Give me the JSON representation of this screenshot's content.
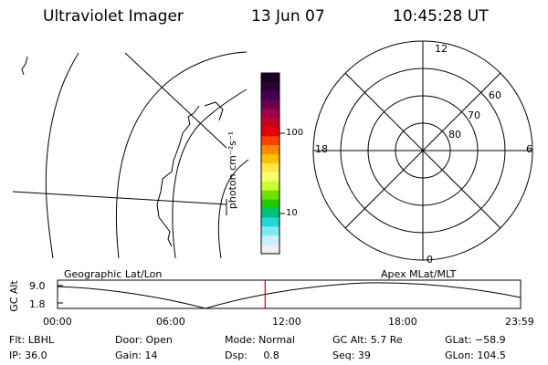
{
  "header": {
    "instrument": "Ultraviolet Imager",
    "date": "13 Jun 07",
    "time": "10:45:28 UT"
  },
  "colorbar": {
    "unit_label": "photon cm⁻²s⁻¹",
    "ticks": [
      "100",
      "10"
    ],
    "colors_top_to_bottom": [
      "#1a0022",
      "#2a0035",
      "#46004d",
      "#6a0050",
      "#a0004a",
      "#c80020",
      "#e60010",
      "#ff4000",
      "#ff8a00",
      "#ffc000",
      "#ffe84a",
      "#f4ff6a",
      "#c8ff30",
      "#70e000",
      "#20c800",
      "#00c080",
      "#20d8d0",
      "#80e8f0",
      "#c8f0f8",
      "#f0f0f0"
    ]
  },
  "polar_plot": {
    "mlt_labels": {
      "top": "12",
      "left": "18",
      "right": "6",
      "bottom": "0"
    },
    "lat_labels": [
      "60",
      "70",
      "80"
    ]
  },
  "timeline": {
    "left_label": "Geographic Lat/Lon",
    "right_label": "Apex MLat/MLT",
    "y_axis_title": "GC Alt",
    "y_ticks": [
      "9.0",
      "1.8"
    ],
    "x_ticks": [
      "00:00",
      "06:00",
      "12:00",
      "18:00",
      "23:59"
    ],
    "current_time_fraction": 0.4484,
    "marker_color": "#e00000"
  },
  "status": {
    "row1": {
      "flt": "Flt: LBHL",
      "door": "Door: Open",
      "mode": "Mode: Normal",
      "gc_alt": "GC Alt: 5.7 Re",
      "glat": "GLat: −58.9"
    },
    "row2": {
      "ip": "IP: 36.0",
      "gain": "Gain: 14",
      "dsp": "Dsp:     0.8",
      "seq": "Seq: 39",
      "glon": "GLon: 104.5"
    }
  }
}
